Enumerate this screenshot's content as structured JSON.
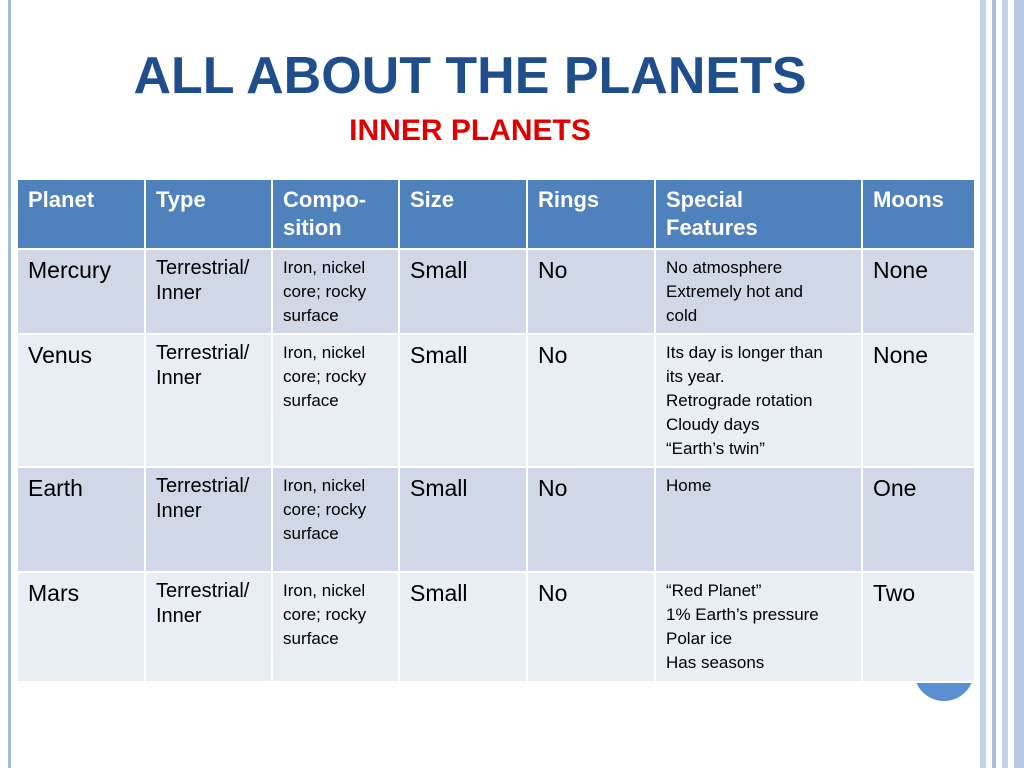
{
  "header": {
    "title": "ALL ABOUT THE PLANETS",
    "subtitle": "INNER PLANETS"
  },
  "table": {
    "columns": [
      "Planet",
      "Type",
      "Compo-\nsition",
      "Size",
      "Rings",
      "Special\nFeatures",
      "Moons"
    ],
    "rows": [
      [
        "Mercury",
        "Terrestrial/\nInner",
        "Iron, nickel\ncore; rocky\nsurface",
        "Small",
        "No",
        "No atmosphere\nExtremely hot and\ncold",
        "None"
      ],
      [
        "Venus",
        "Terrestrial/\nInner",
        "Iron, nickel\ncore; rocky\nsurface",
        "Small",
        "No",
        "Its day is longer than\nits year.\nRetrograde rotation\nCloudy days\n“Earth’s twin”",
        "None"
      ],
      [
        "Earth",
        "Terrestrial/\nInner",
        "Iron, nickel\ncore; rocky\nsurface",
        "Small",
        "No",
        "Home",
        "One"
      ],
      [
        "Mars",
        "Terrestrial/\nInner",
        "Iron, nickel\ncore; rocky\nsurface",
        "Small",
        "No",
        "“Red Planet”\n1% Earth’s pressure\nPolar ice\nHas seasons",
        "Two"
      ]
    ]
  }
}
